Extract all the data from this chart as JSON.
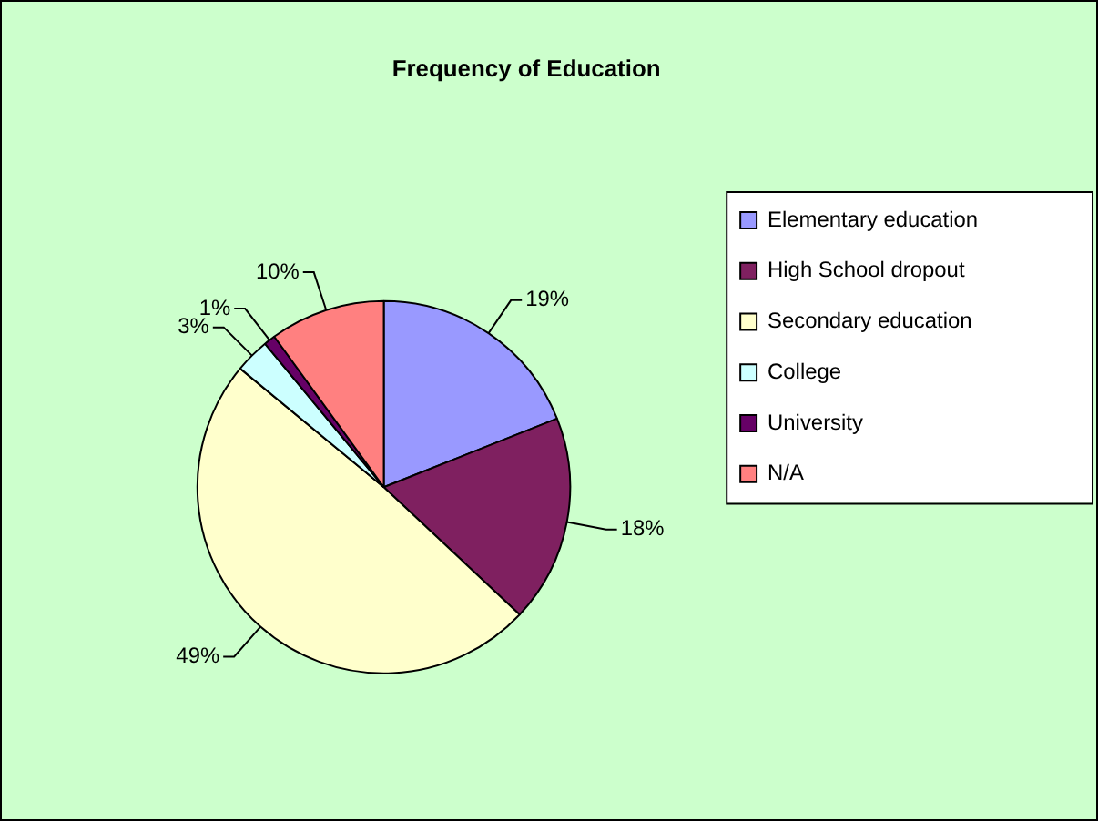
{
  "chart_data": {
    "type": "pie",
    "title": "Frequency of Education",
    "categories": [
      "Elementary education",
      "High School dropout",
      "Secondary education",
      "College",
      "University",
      "N/A"
    ],
    "values": [
      19,
      18,
      49,
      3,
      1,
      10
    ],
    "colors": [
      "#9999ff",
      "#7f2060",
      "#ffffcc",
      "#ccffff",
      "#660066",
      "#ff8080"
    ],
    "value_labels": [
      "19%",
      "18%",
      "49%",
      "3%",
      "1%",
      "10%"
    ],
    "legend": "right"
  }
}
